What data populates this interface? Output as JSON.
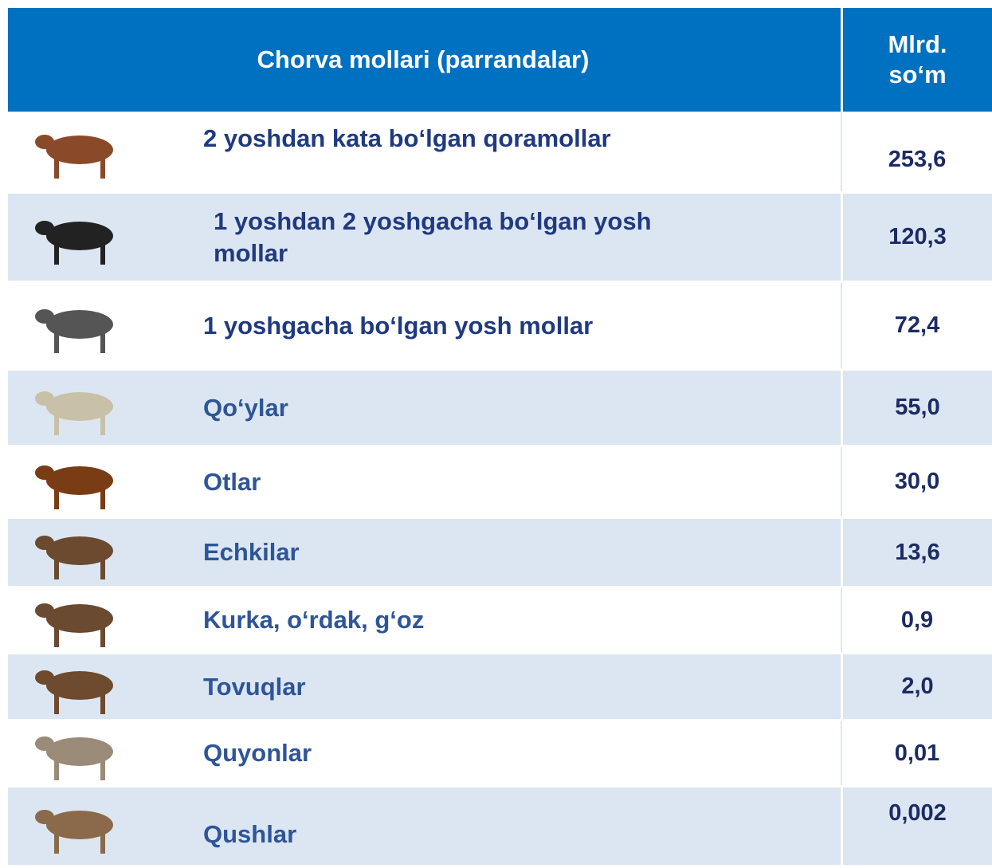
{
  "table": {
    "header": [
      "Chorva mollari (parrandalar)",
      [
        "Mlrd.",
        "so‘m"
      ]
    ],
    "rows": [
      [
        "2 yoshdan kata bo‘lgan qoramollar",
        "253,6"
      ],
      [
        "1 yoshdan 2 yoshgacha bo‘lgan yosh mollar",
        "120,3"
      ],
      [
        "1 yoshgacha bo‘lgan yosh mollar",
        "72,4"
      ],
      [
        "Qo‘ylar",
        "55,0"
      ],
      [
        "Otlar",
        "30,0"
      ],
      [
        "Echkilar",
        "13,6"
      ],
      [
        "Kurka, o‘rdak, g‘oz",
        "0,9"
      ],
      [
        "Tovuqlar",
        "2,0"
      ],
      [
        "Quyonlar",
        "0,01"
      ],
      [
        "Qushlar",
        "0,002"
      ]
    ]
  }
}
